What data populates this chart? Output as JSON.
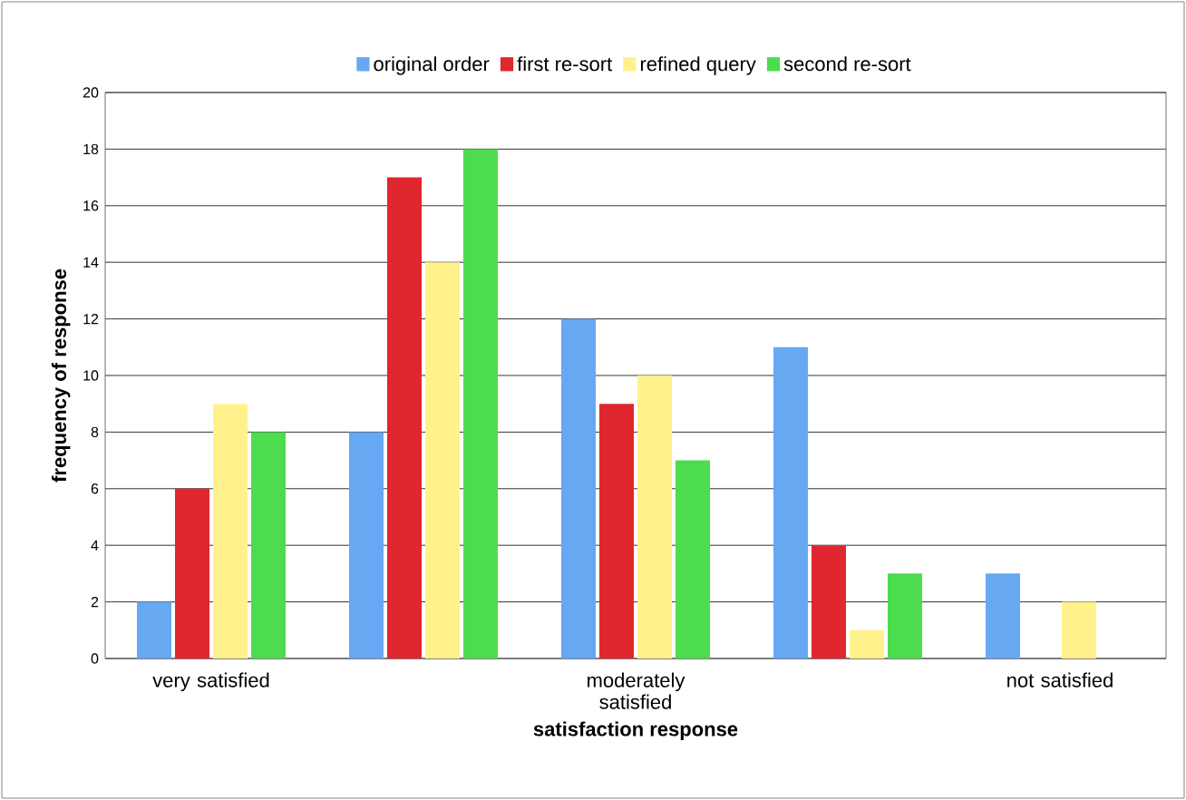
{
  "chart_data": {
    "type": "bar",
    "xlabel": "satisfaction response",
    "ylabel": "frequency of response",
    "categories": [
      "very satisfied",
      null,
      "moderately satisfied",
      null,
      "not satisfied"
    ],
    "series": [
      {
        "name": "original order",
        "color": "#66a8f2",
        "values": [
          2,
          8,
          12,
          11,
          3
        ]
      },
      {
        "name": "first re-sort",
        "color": "#e0262e",
        "values": [
          6,
          17,
          9,
          4,
          0
        ]
      },
      {
        "name": "refined query",
        "color": "#fff28c",
        "values": [
          9,
          14,
          10,
          1,
          2
        ]
      },
      {
        "name": "second re-sort",
        "color": "#4ddc4d",
        "values": [
          8,
          18,
          7,
          3,
          0
        ]
      }
    ],
    "ylim": [
      0,
      20
    ],
    "yticks": [
      0,
      2,
      4,
      6,
      8,
      10,
      12,
      14,
      16,
      18,
      20
    ],
    "grid": "y",
    "legend": "top"
  }
}
